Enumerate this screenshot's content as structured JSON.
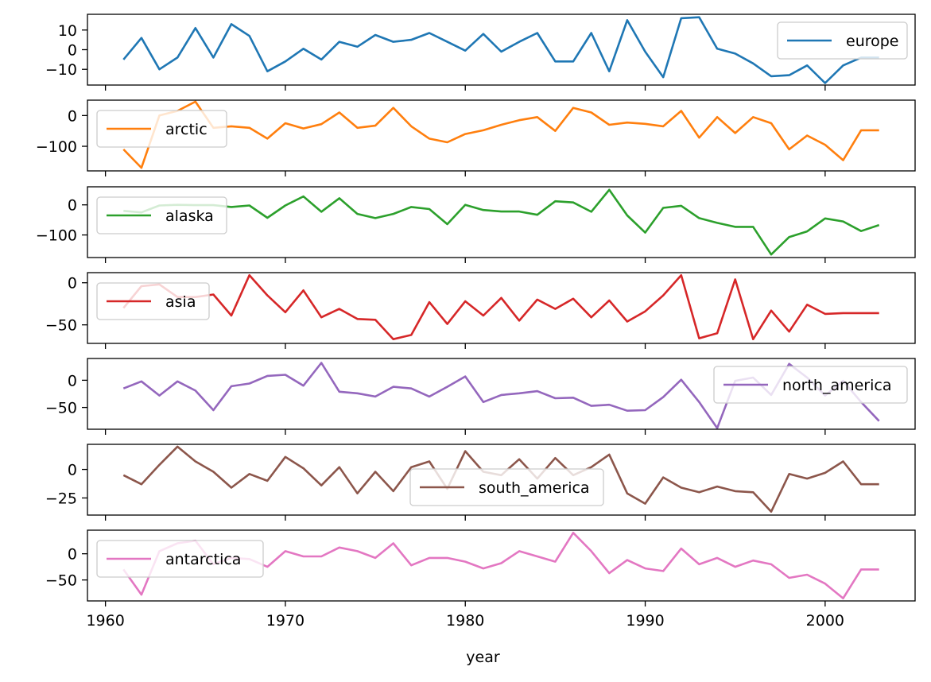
{
  "chart_data": {
    "type": "line",
    "xlabel": "year",
    "xlim": [
      1959,
      2005
    ],
    "xticks": [
      1960,
      1970,
      1980,
      1990,
      2000
    ],
    "x": [
      1961,
      1962,
      1963,
      1964,
      1965,
      1966,
      1967,
      1968,
      1969,
      1970,
      1971,
      1972,
      1973,
      1974,
      1975,
      1976,
      1977,
      1978,
      1979,
      1980,
      1981,
      1982,
      1983,
      1984,
      1985,
      1986,
      1987,
      1988,
      1989,
      1990,
      1991,
      1992,
      1993,
      1994,
      1995,
      1996,
      1997,
      1998,
      1999,
      2000,
      2001,
      2002,
      2003
    ],
    "grid": false,
    "series": [
      {
        "name": "europe",
        "color": "#1f77b4",
        "ylim": [
          -18,
          18
        ],
        "yticks": [
          10,
          0,
          -10
        ],
        "yticklabels": [
          "10",
          "0",
          "−10"
        ],
        "legend": "upper right",
        "values": [
          -5,
          6,
          -10,
          -4,
          11,
          -4,
          13,
          7,
          -11,
          -6,
          0.5,
          -5,
          4,
          1.5,
          7.5,
          4,
          5,
          8.5,
          4,
          -0.5,
          8,
          -1,
          4,
          8.5,
          -6,
          -6,
          8.5,
          -11,
          15,
          -1,
          -14,
          16,
          16.5,
          0.5,
          -2,
          -7,
          -13.5,
          -13,
          -8,
          -17,
          -8,
          -4,
          -4
        ]
      },
      {
        "name": "arctic",
        "color": "#ff7f0e",
        "ylim": [
          -180,
          50
        ],
        "yticks": [
          0,
          -100
        ],
        "yticklabels": [
          "0",
          "−100"
        ],
        "legend": "upper left",
        "values": [
          -110,
          -170,
          0,
          15,
          45,
          -40,
          -35,
          -40,
          -75,
          -25,
          -42,
          -28,
          10,
          -40,
          -33,
          25,
          -35,
          -75,
          -87,
          -60,
          -48,
          -30,
          -15,
          -5,
          -50,
          25,
          10,
          -30,
          -23,
          -27,
          -35,
          15,
          -72,
          -5,
          -57,
          -5,
          -25,
          -110,
          -65,
          -95,
          -145,
          -48,
          -48
        ]
      },
      {
        "name": "alaska",
        "color": "#2ca02c",
        "ylim": [
          -175,
          60
        ],
        "yticks": [
          0,
          -100
        ],
        "yticklabels": [
          "0",
          "−100"
        ],
        "legend": "upper left",
        "values": [
          -20,
          -25,
          -2,
          0,
          -1,
          -1,
          -7,
          -2,
          -43,
          -2,
          28,
          -23,
          22,
          -30,
          -44,
          -30,
          -7,
          -14,
          -64,
          0,
          -17,
          -22,
          -22,
          -33,
          12,
          8,
          -23,
          50,
          -35,
          -92,
          -10,
          -3,
          -44,
          -60,
          -73,
          -73,
          -165,
          -107,
          -88,
          -45,
          -55,
          -87,
          -67
        ]
      },
      {
        "name": "asia",
        "color": "#d62728",
        "ylim": [
          -72,
          12
        ],
        "yticks": [
          0,
          -50
        ],
        "yticklabels": [
          "0",
          "−50"
        ],
        "legend": "upper left",
        "values": [
          -30,
          -4,
          -2,
          -17,
          -17,
          -14,
          -39,
          9,
          -15,
          -35,
          -9,
          -41,
          -31,
          -43,
          -44,
          -67,
          -62,
          -23,
          -49,
          -22,
          -39,
          -18,
          -45,
          -20,
          -31,
          -19,
          -41,
          -21,
          -46,
          -34,
          -15,
          9,
          -66,
          -60,
          4,
          -67,
          -33,
          -58,
          -26,
          -37,
          -36,
          -36,
          -36
        ]
      },
      {
        "name": "north_america",
        "color": "#9467bd",
        "ylim": [
          -90,
          40
        ],
        "yticks": [
          0,
          -50
        ],
        "yticklabels": [
          "0",
          "−50"
        ],
        "legend": "upper right",
        "values": [
          -15,
          -2,
          -28,
          -2,
          -19,
          -55,
          -11,
          -6,
          8,
          10,
          -10,
          32,
          -21,
          -24,
          -30,
          -12,
          -15,
          -30,
          -12,
          7,
          -40,
          -27,
          -24,
          -20,
          -33,
          -32,
          -47,
          -45,
          -56,
          -55,
          -31,
          1,
          -40,
          -88,
          -1,
          5,
          -27,
          30,
          5,
          -28,
          -1,
          -40,
          -75
        ]
      },
      {
        "name": "south_america",
        "color": "#8c564b",
        "ylim": [
          -40,
          22
        ],
        "yticks": [
          0,
          -25
        ],
        "yticklabels": [
          "0",
          "−25"
        ],
        "legend": "lower center",
        "values": [
          -5,
          -13,
          4,
          20,
          7,
          -2,
          -16,
          -4,
          -10,
          11,
          1,
          -14,
          2,
          -21,
          -2,
          -19,
          2,
          7,
          -17,
          16,
          -2,
          -5,
          9,
          -8,
          10,
          -5,
          2,
          13,
          -21,
          -30,
          -7,
          -16,
          -20,
          -15,
          -19,
          -20,
          -37,
          -4,
          -8,
          -3,
          7,
          -13,
          -13
        ]
      },
      {
        "name": "antarctica",
        "color": "#e377c2",
        "ylim": [
          -90,
          45
        ],
        "yticks": [
          0,
          -50
        ],
        "yticklabels": [
          "0",
          "−50"
        ],
        "legend": "upper left",
        "values": [
          -30,
          -78,
          5,
          20,
          25,
          -20,
          -8,
          -10,
          -25,
          5,
          -5,
          -5,
          12,
          5,
          -8,
          20,
          -22,
          -8,
          -8,
          -15,
          -28,
          -18,
          5,
          -5,
          -15,
          40,
          5,
          -37,
          -12,
          -28,
          -33,
          10,
          -20,
          -8,
          -25,
          -13,
          -20,
          -46,
          -40,
          -57,
          -85,
          -30,
          -30
        ]
      }
    ]
  }
}
